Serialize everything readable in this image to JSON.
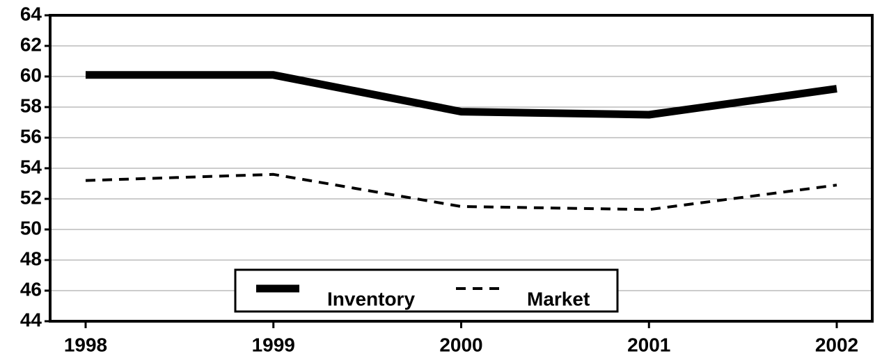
{
  "chart_data": {
    "type": "line",
    "categories": [
      "1998",
      "1999",
      "2000",
      "2001",
      "2002"
    ],
    "series": [
      {
        "name": "Inventory",
        "color": "#000000",
        "style": "solid",
        "values": [
          60.1,
          60.1,
          57.7,
          57.5,
          59.2
        ]
      },
      {
        "name": "Market",
        "color": "#000000",
        "style": "dashed",
        "values": [
          53.2,
          53.6,
          51.5,
          51.3,
          52.9
        ]
      }
    ],
    "ylim": [
      44,
      64
    ],
    "yticks": [
      44,
      46,
      48,
      50,
      52,
      54,
      56,
      58,
      60,
      62,
      64
    ],
    "grid": true,
    "legend": "bottom center"
  }
}
